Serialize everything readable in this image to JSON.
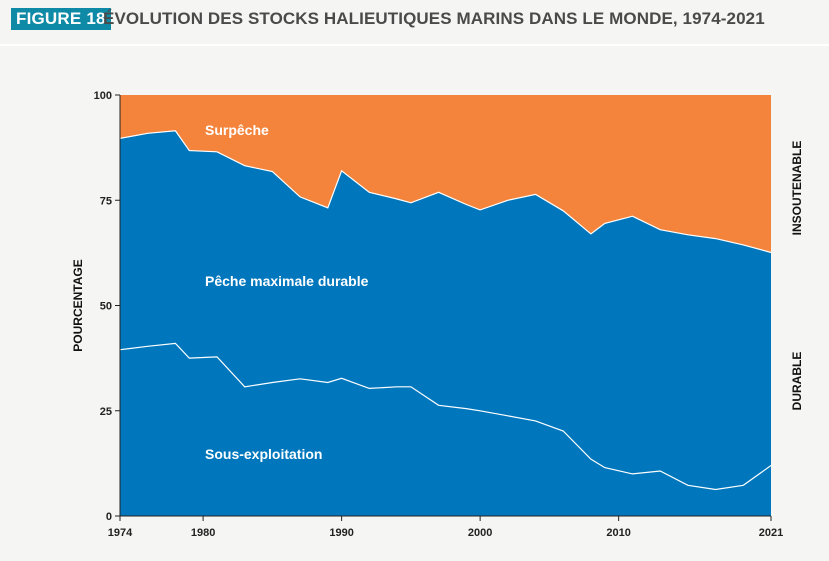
{
  "header": {
    "figure_badge": "FIGURE 18",
    "title": "ÉVOLUTION DES STOCKS HALIEUTIQUES MARINS DANS LE MONDE, 1974-2021"
  },
  "colors": {
    "overfishing": "#f4843b",
    "max_sustainable": "#0077bd",
    "underexploited": "#0077bd",
    "line": "#ffffff",
    "badge": "#0f8aa6"
  },
  "chart_data": {
    "type": "area",
    "title": "ÉVOLUTION DES STOCKS HALIEUTIQUES MARINS DANS LE MONDE, 1974-2021",
    "xlabel": "",
    "ylabel": "POURCENTAGE",
    "xlim": [
      1974,
      2021
    ],
    "ylim": [
      0,
      100
    ],
    "x_ticks": [
      "1974",
      "1980",
      "1990",
      "2000",
      "2010",
      "2021"
    ],
    "y_ticks": [
      "0",
      "25",
      "50",
      "75",
      "100"
    ],
    "stacked": true,
    "series": [
      {
        "name": "Sous-exploitation",
        "x": [
          1974,
          1976,
          1978,
          1979,
          1981,
          1983,
          1985,
          1987,
          1989,
          1990,
          1992,
          1994,
          1995,
          1997,
          1999,
          2000,
          2002,
          2004,
          2006,
          2008,
          2009,
          2011,
          2013,
          2015,
          2017,
          2019,
          2021
        ],
        "values": [
          39.5,
          40.3,
          41,
          37.5,
          37.8,
          30.7,
          31.7,
          32.6,
          31.7,
          32.7,
          30.3,
          30.7,
          30.7,
          26.3,
          25.5,
          25,
          23.8,
          22.6,
          20.2,
          13.5,
          11.5,
          10,
          10.7,
          7.3,
          6.3,
          7.3,
          12
        ]
      },
      {
        "name": "Pêche maximale durable",
        "x": [
          1974,
          1976,
          1978,
          1979,
          1981,
          1983,
          1985,
          1987,
          1989,
          1990,
          1992,
          1994,
          1995,
          1997,
          1999,
          2000,
          2002,
          2004,
          2006,
          2008,
          2009,
          2011,
          2013,
          2015,
          2017,
          2019,
          2021
        ],
        "values": [
          50.2,
          50.6,
          50.5,
          49.3,
          48.7,
          52.5,
          50.1,
          43.2,
          41.5,
          49.3,
          46.6,
          44.6,
          43.7,
          50.6,
          48.5,
          47.7,
          51.2,
          53.8,
          52.3,
          53.5,
          58,
          61.2,
          57.3,
          59.5,
          59.6,
          57.1,
          50.6
        ]
      },
      {
        "name": "Surpêche",
        "x": [
          1974,
          1976,
          1978,
          1979,
          1981,
          1983,
          1985,
          1987,
          1989,
          1990,
          1992,
          1994,
          1995,
          1997,
          1999,
          2000,
          2002,
          2004,
          2006,
          2008,
          2009,
          2011,
          2013,
          2015,
          2017,
          2019,
          2021
        ],
        "values": [
          10.3,
          9.1,
          8.5,
          13.2,
          13.5,
          16.8,
          18.2,
          24.2,
          26.8,
          18,
          23.1,
          24.7,
          25.6,
          23.1,
          26,
          27.3,
          25,
          23.6,
          27.5,
          33,
          30.5,
          28.8,
          32,
          33.2,
          34.1,
          35.6,
          37.4
        ]
      }
    ],
    "annotations": {
      "overfishing_label": "Surpêche",
      "max_label": "Pêche maximale durable",
      "under_label": "Sous-exploitation"
    },
    "side_labels": {
      "top": "INSOUTENABLE",
      "bottom": "DURABLE"
    }
  }
}
